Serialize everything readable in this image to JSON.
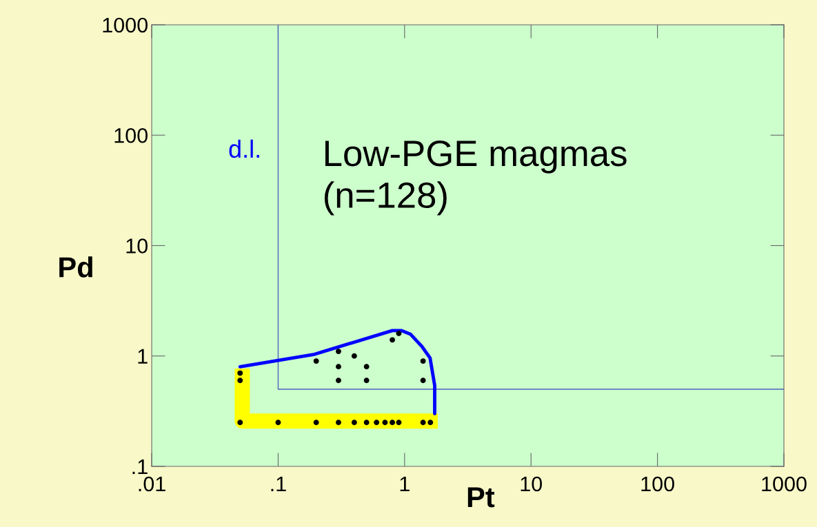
{
  "chart_data": {
    "type": "scatter",
    "xlabel": "Pt",
    "ylabel": "Pd",
    "annotations": [
      "d.l.",
      "Low-PGE magmas\n(n=128)"
    ],
    "log": "xy",
    "grid": false,
    "xlim": [
      0.01,
      1000
    ],
    "ylim": [
      0.1,
      1000
    ],
    "xticks": [
      {
        "value": 0.01,
        "label": ".01"
      },
      {
        "value": 0.1,
        "label": ".1"
      },
      1,
      10,
      100,
      1000
    ],
    "yticks": [
      {
        "value": 0.1,
        "label": ".1"
      },
      1,
      10,
      100,
      1000
    ],
    "series": [
      {
        "type": "line",
        "color": "#ffff00",
        "x": [
          0.052,
          0.052,
          1.83
        ],
        "values": [
          0.77,
          0.257,
          0.257
        ]
      },
      {
        "type": "line",
        "color": "#5060c0",
        "x": [
          0.1,
          0.1,
          1000
        ],
        "values": [
          1000,
          0.5,
          0.5
        ]
      },
      {
        "type": "line",
        "color": "#0000ff",
        "x": [
          0.05,
          0.19,
          0.8,
          0.94,
          1.11,
          1.37,
          1.59,
          1.73,
          1.73
        ],
        "values": [
          0.8,
          1.03,
          1.7,
          1.7,
          1.58,
          1.22,
          0.96,
          0.54,
          0.3
        ]
      },
      {
        "marker": "circle",
        "color": "#000000",
        "x": [
          0.05,
          0.1,
          0.2,
          0.3,
          0.4,
          0.5,
          0.6,
          0.7,
          0.8,
          0.9,
          1.4,
          1.6,
          0.05,
          0.05,
          0.2,
          0.3,
          0.3,
          0.3,
          0.4,
          0.5,
          0.5,
          0.8,
          0.9,
          1.4,
          1.4
        ],
        "values": [
          0.25,
          0.25,
          0.25,
          0.25,
          0.25,
          0.25,
          0.25,
          0.25,
          0.25,
          0.25,
          0.25,
          0.25,
          0.7,
          0.6,
          0.9,
          1.1,
          0.8,
          0.6,
          1.0,
          0.8,
          0.6,
          1.4,
          1.6,
          0.9,
          0.6
        ]
      }
    ]
  }
}
